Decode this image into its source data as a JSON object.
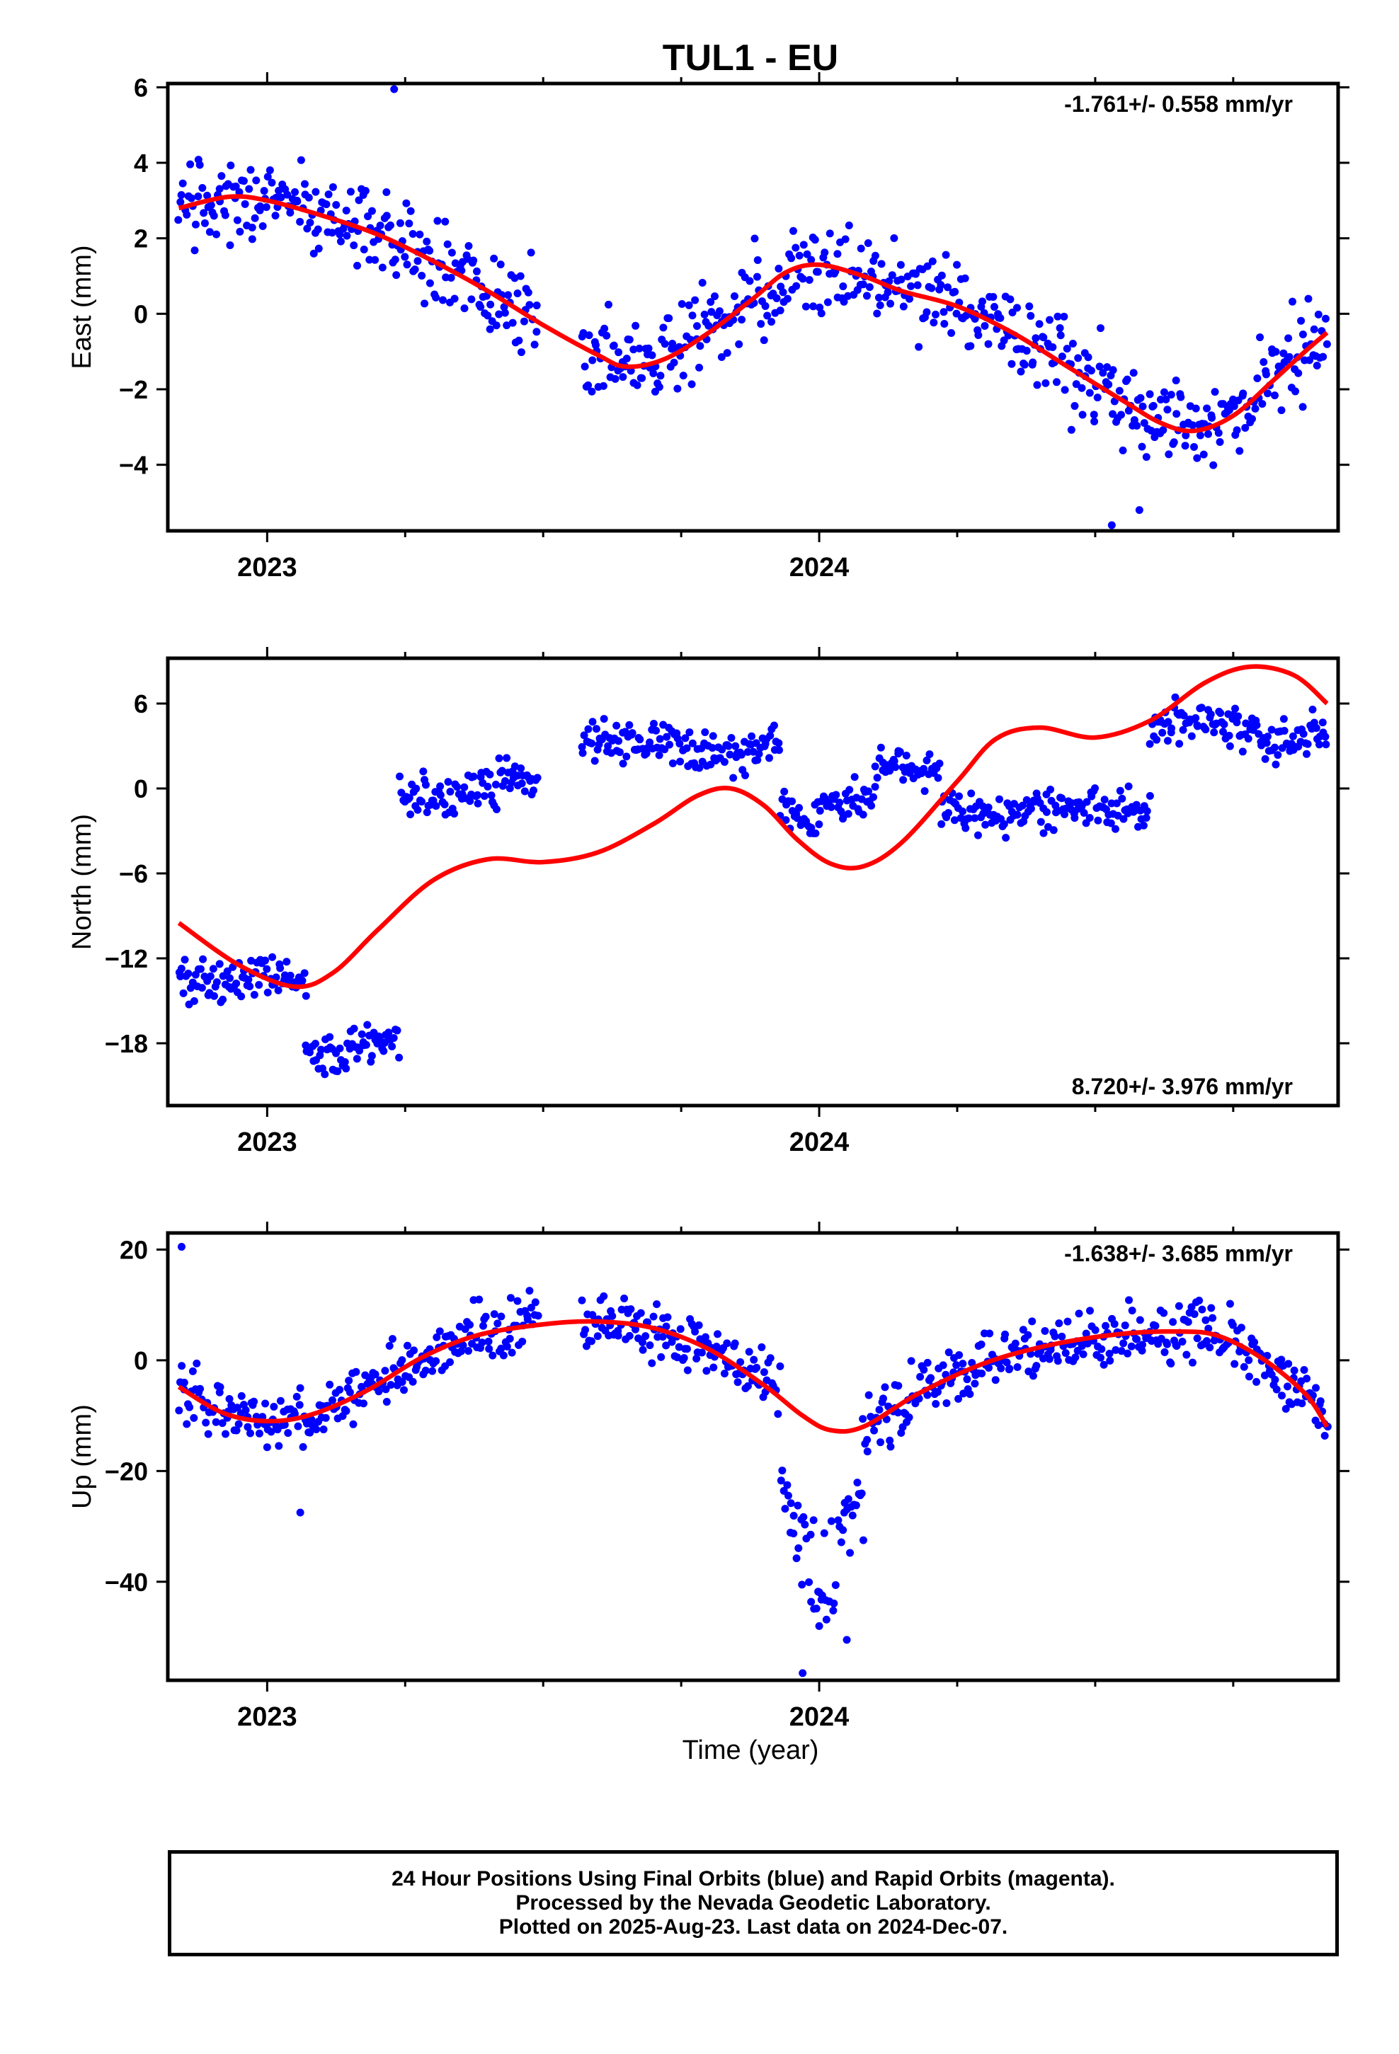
{
  "title": "TUL1 - EU",
  "xlabel": "Time (year)",
  "footer": {
    "line1": "24 Hour Positions Using Final Orbits (blue) and Rapid Orbits (magenta).",
    "line2": "Processed by the Nevada Geodetic Laboratory.",
    "line3": "Plotted on 2025-Aug-23. Last data on 2024-Dec-07."
  },
  "colors": {
    "points": "#0000ff",
    "fit": "#ff0000",
    "frame": "#000000"
  },
  "chart_data": [
    {
      "type": "scatter",
      "ylabel": "East (mm)",
      "rate_label": "-1.761+/- 0.558 mm/yr",
      "rate_position": "top-right",
      "xlim": [
        2022.82,
        2024.94
      ],
      "ylim": [
        -5.75,
        6.1
      ],
      "xticks": [
        {
          "value": 2023.0,
          "label": "2023"
        },
        {
          "value": 2024.0,
          "label": "2024"
        }
      ],
      "minor_xticks": [
        2023.25,
        2023.5,
        2023.75,
        2024.25,
        2024.5,
        2024.75
      ],
      "yticks": [
        -4,
        -2,
        0,
        2,
        4,
        6
      ],
      "points_series": {
        "name": "24 Hour Positions (Final Orbits)",
        "segments": [
          [
            2022.84,
            2023.49
          ],
          [
            2023.57,
            2024.92
          ]
        ],
        "notable_points": [
          [
            2023.23,
            5.95
          ],
          [
            2024.53,
            -5.6
          ],
          [
            2024.58,
            -5.2
          ]
        ],
        "scatter_mm": 1.0
      },
      "fit_series": {
        "name": "fit",
        "points": [
          [
            2022.84,
            2.8
          ],
          [
            2022.93,
            3.1
          ],
          [
            2023.0,
            3.0
          ],
          [
            2023.1,
            2.6
          ],
          [
            2023.2,
            2.1
          ],
          [
            2023.3,
            1.4
          ],
          [
            2023.4,
            0.6
          ],
          [
            2023.5,
            -0.3
          ],
          [
            2023.6,
            -1.1
          ],
          [
            2023.65,
            -1.4
          ],
          [
            2023.72,
            -1.2
          ],
          [
            2023.8,
            -0.5
          ],
          [
            2023.88,
            0.4
          ],
          [
            2023.94,
            1.1
          ],
          [
            2024.0,
            1.3
          ],
          [
            2024.08,
            1.0
          ],
          [
            2024.15,
            0.6
          ],
          [
            2024.25,
            0.2
          ],
          [
            2024.35,
            -0.5
          ],
          [
            2024.45,
            -1.4
          ],
          [
            2024.55,
            -2.3
          ],
          [
            2024.62,
            -2.9
          ],
          [
            2024.68,
            -3.1
          ],
          [
            2024.75,
            -2.7
          ],
          [
            2024.82,
            -1.8
          ],
          [
            2024.88,
            -1.0
          ],
          [
            2024.92,
            -0.5
          ]
        ]
      }
    },
    {
      "type": "scatter",
      "ylabel": "North (mm)",
      "rate_label": "8.720+/- 3.976 mm/yr",
      "rate_position": "bottom-right",
      "xlim": [
        2022.82,
        2024.94
      ],
      "ylim": [
        -22.4,
        9.2
      ],
      "xticks": [
        {
          "value": 2023.0,
          "label": "2023"
        },
        {
          "value": 2024.0,
          "label": "2024"
        }
      ],
      "minor_xticks": [
        2023.25,
        2023.5,
        2023.75,
        2024.25,
        2024.5,
        2024.75
      ],
      "yticks": [
        -18,
        -12,
        -6,
        0,
        6
      ],
      "points_series": {
        "name": "24 Hour Positions (Final Orbits)",
        "segments": [
          [
            2022.84,
            2023.07,
            -13.5,
            -15
          ],
          [
            2023.07,
            2023.24,
            -18.3,
            -22
          ],
          [
            2023.24,
            2023.49,
            0.0,
            -4.5
          ],
          [
            2023.57,
            2023.93,
            3.0,
            6.2
          ],
          [
            2023.93,
            2024.1,
            -1.5,
            -6
          ],
          [
            2024.1,
            2024.22,
            1.5,
            4.2
          ],
          [
            2024.22,
            2024.6,
            -1.5,
            -3.5
          ],
          [
            2024.6,
            2024.92,
            4.0,
            8.5
          ]
        ],
        "scatter_mm": 1.3
      },
      "fit_series": {
        "name": "fit",
        "points": [
          [
            2022.84,
            -9.5
          ],
          [
            2022.95,
            -12.5
          ],
          [
            2023.05,
            -14.0
          ],
          [
            2023.12,
            -13.0
          ],
          [
            2023.2,
            -10.0
          ],
          [
            2023.3,
            -6.5
          ],
          [
            2023.4,
            -5.0
          ],
          [
            2023.5,
            -5.2
          ],
          [
            2023.6,
            -4.5
          ],
          [
            2023.7,
            -2.5
          ],
          [
            2023.78,
            -0.5
          ],
          [
            2023.84,
            0.0
          ],
          [
            2023.9,
            -1.2
          ],
          [
            2023.96,
            -3.6
          ],
          [
            2024.02,
            -5.3
          ],
          [
            2024.08,
            -5.5
          ],
          [
            2024.15,
            -3.8
          ],
          [
            2024.25,
            0.5
          ],
          [
            2024.32,
            3.5
          ],
          [
            2024.4,
            4.3
          ],
          [
            2024.5,
            3.6
          ],
          [
            2024.6,
            4.8
          ],
          [
            2024.7,
            7.5
          ],
          [
            2024.78,
            8.6
          ],
          [
            2024.86,
            8.0
          ],
          [
            2024.92,
            6.0
          ]
        ]
      }
    },
    {
      "type": "scatter",
      "ylabel": "Up (mm)",
      "rate_label": "-1.638+/- 3.685 mm/yr",
      "rate_position": "top-right",
      "xlim": [
        2022.82,
        2024.94
      ],
      "ylim": [
        -57.8,
        23
      ],
      "xticks": [
        {
          "value": 2023.0,
          "label": "2023"
        },
        {
          "value": 2024.0,
          "label": "2024"
        }
      ],
      "minor_xticks": [
        2023.25,
        2023.5,
        2023.75,
        2024.25,
        2024.5,
        2024.75
      ],
      "yticks": [
        -40,
        -20,
        0,
        20
      ],
      "points_series": {
        "name": "24 Hour Positions (Final Orbits)",
        "segments": [
          [
            2022.84,
            2023.49
          ],
          [
            2023.57,
            2023.93
          ],
          [
            2023.93,
            2024.08,
            "outlier-cluster"
          ],
          [
            2024.08,
            2024.92
          ]
        ],
        "notable_points": [
          [
            2022.845,
            20.5
          ],
          [
            2023.06,
            -27.5
          ],
          [
            2023.97,
            -56.5
          ],
          [
            2024.0,
            -48
          ],
          [
            2024.05,
            -50.5
          ],
          [
            2024.08,
            -32.5
          ]
        ],
        "scatter_mm": 4.5
      },
      "fit_series": {
        "name": "fit",
        "points": [
          [
            2022.84,
            -4.8
          ],
          [
            2022.92,
            -9.5
          ],
          [
            2023.0,
            -11.0
          ],
          [
            2023.08,
            -9.8
          ],
          [
            2023.18,
            -5.5
          ],
          [
            2023.28,
            0.5
          ],
          [
            2023.38,
            4.5
          ],
          [
            2023.5,
            6.5
          ],
          [
            2023.6,
            7.0
          ],
          [
            2023.7,
            5.8
          ],
          [
            2023.8,
            2.0
          ],
          [
            2023.9,
            -4.5
          ],
          [
            2023.97,
            -10.0
          ],
          [
            2024.02,
            -12.6
          ],
          [
            2024.08,
            -12.0
          ],
          [
            2024.18,
            -6.0
          ],
          [
            2024.3,
            -0.5
          ],
          [
            2024.42,
            2.8
          ],
          [
            2024.55,
            4.8
          ],
          [
            2024.65,
            5.2
          ],
          [
            2024.72,
            4.5
          ],
          [
            2024.8,
            0.5
          ],
          [
            2024.88,
            -6.0
          ],
          [
            2024.92,
            -12.0
          ]
        ]
      }
    }
  ]
}
